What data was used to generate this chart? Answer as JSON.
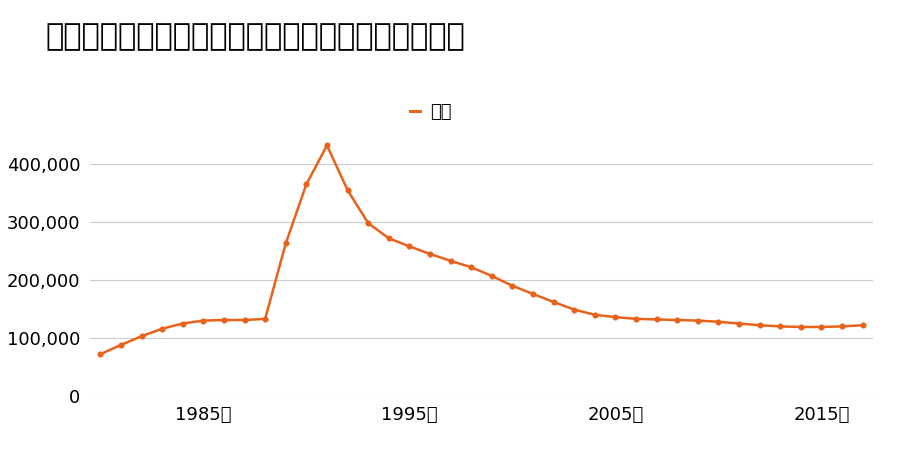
{
  "title": "千葉県八千代市勝田台７丁目２０番１４の地価推移",
  "legend_label": "価格",
  "line_color": "#e8621a",
  "marker_color": "#e8621a",
  "legend_marker_color": "#e8621a",
  "background_color": "#ffffff",
  "years": [
    1980,
    1981,
    1982,
    1983,
    1984,
    1985,
    1986,
    1987,
    1988,
    1989,
    1990,
    1991,
    1992,
    1993,
    1994,
    1995,
    1996,
    1997,
    1998,
    1999,
    2000,
    2001,
    2002,
    2003,
    2004,
    2005,
    2006,
    2007,
    2008,
    2009,
    2010,
    2011,
    2012,
    2013,
    2014,
    2015,
    2016,
    2017
  ],
  "values": [
    72000,
    88000,
    103000,
    116000,
    125000,
    130000,
    131000,
    131000,
    133000,
    263000,
    365000,
    432000,
    355000,
    298000,
    272000,
    258000,
    245000,
    233000,
    222000,
    207000,
    190000,
    176000,
    162000,
    149000,
    140000,
    136000,
    133000,
    132000,
    131000,
    130000,
    128000,
    125000,
    122000,
    120000,
    119000,
    119000,
    120000,
    122000
  ],
  "ylim": [
    0,
    450000
  ],
  "yticks": [
    0,
    100000,
    200000,
    300000,
    400000
  ],
  "xtick_years": [
    1985,
    1995,
    2005,
    2015
  ],
  "title_fontsize": 22,
  "axis_fontsize": 13,
  "legend_fontsize": 13
}
